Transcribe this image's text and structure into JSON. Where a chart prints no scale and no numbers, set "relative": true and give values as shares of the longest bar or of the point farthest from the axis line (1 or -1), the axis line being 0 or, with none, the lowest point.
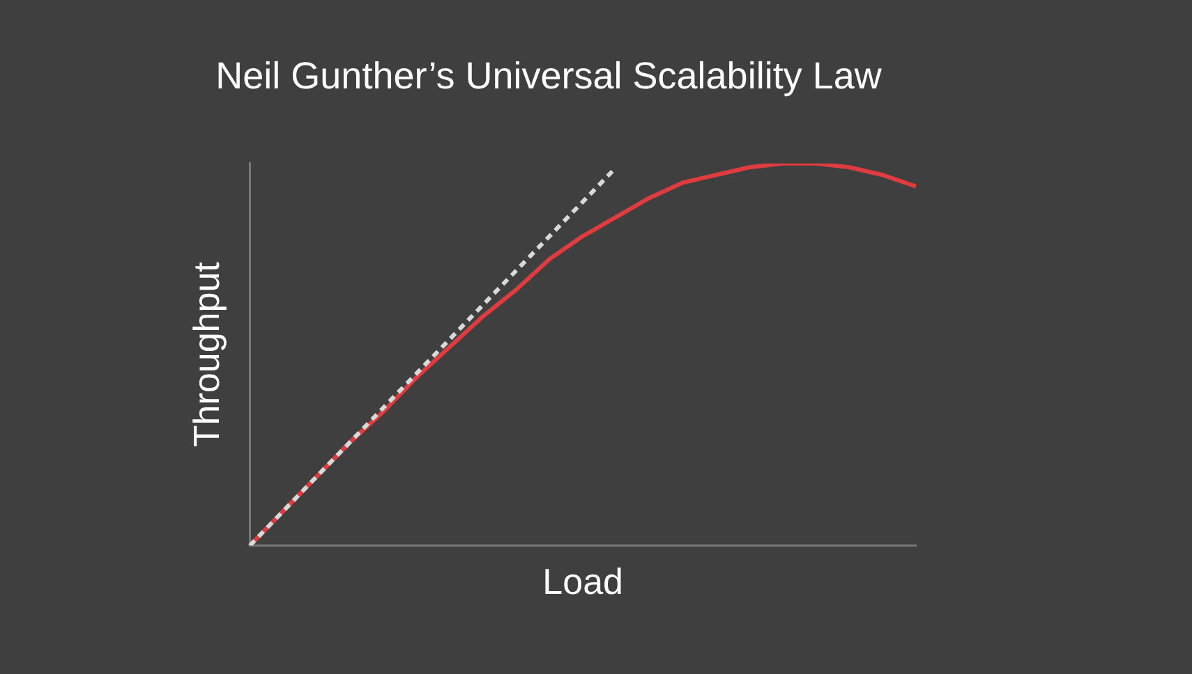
{
  "chart_data": {
    "type": "line",
    "title": "Neil Gunther’s Universal Scalability Law",
    "xlabel": "Load",
    "ylabel": "Throughput",
    "relative": true,
    "grid": false,
    "legend": false,
    "marker": "none",
    "tick_labels": false,
    "categories": [
      null,
      null,
      null,
      null,
      null,
      null,
      null,
      null,
      null,
      null,
      null,
      null,
      null,
      null,
      null,
      null,
      null,
      null,
      null,
      null,
      null
    ],
    "series": [
      {
        "color": "#d9d9d9",
        "line_style": "dashed",
        "values": [
          0,
          0.09,
          0.18,
          0.27,
          0.36,
          0.45,
          0.54,
          0.63,
          0.72,
          0.81,
          0.9,
          0.99,
          null,
          null,
          null,
          null,
          null,
          null,
          null,
          null,
          null
        ]
      },
      {
        "color": "#e03c3f",
        "line_style": "solid",
        "values": [
          0,
          0.09,
          0.18,
          0.27,
          0.35,
          0.44,
          0.52,
          0.6,
          0.67,
          0.75,
          0.81,
          0.86,
          0.91,
          0.95,
          0.97,
          0.99,
          1,
          1,
          0.99,
          0.97,
          0.94
        ]
      }
    ]
  }
}
